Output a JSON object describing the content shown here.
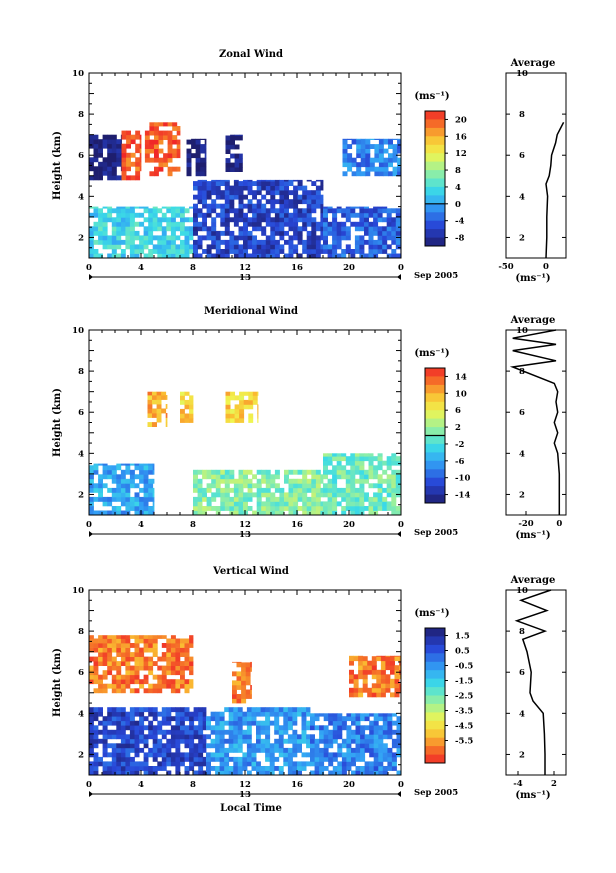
{
  "chart_data": [
    {
      "type": "heatmap",
      "title": "Zonal Wind",
      "ylabel": "Height (km)",
      "xlabel": "",
      "date_label": "Sep 2005",
      "day_label": "13",
      "xlim": [
        0,
        24
      ],
      "ylim": [
        1,
        10
      ],
      "x_ticks": [
        "0",
        "4",
        "8",
        "12",
        "16",
        "20",
        "0"
      ],
      "y_ticks": [
        "2",
        "4",
        "6",
        "8",
        "10"
      ],
      "colorbar": {
        "unit": "(ms⁻¹)",
        "range": [
          -10,
          22
        ],
        "ticks": [
          "-8",
          "-4",
          "0",
          "4",
          "8",
          "12",
          "16",
          "20"
        ],
        "zero_line": 0
      },
      "regions": [
        {
          "x": [
            0,
            2.5
          ],
          "y": [
            4.8,
            7.0
          ],
          "value": -10
        },
        {
          "x": [
            2.5,
            4
          ],
          "y": [
            4.8,
            7.2
          ],
          "value": 20
        },
        {
          "x": [
            4.3,
            7.0
          ],
          "y": [
            5.0,
            7.6
          ],
          "value": 20
        },
        {
          "x": [
            7.5,
            9.0
          ],
          "y": [
            5.0,
            6.8
          ],
          "value": -10
        },
        {
          "x": [
            10.5,
            11.8
          ],
          "y": [
            5.2,
            7.0
          ],
          "value": -10
        },
        {
          "x": [
            19.5,
            24
          ],
          "y": [
            5.0,
            6.8
          ],
          "value": -2
        },
        {
          "x": [
            0,
            8
          ],
          "y": [
            1.0,
            3.5
          ],
          "value": 3
        },
        {
          "x": [
            8,
            18
          ],
          "y": [
            1.0,
            4.8
          ],
          "value": -6
        },
        {
          "x": [
            18,
            24
          ],
          "y": [
            1.0,
            3.5
          ],
          "value": -4
        }
      ],
      "average_profile": {
        "title": "Average",
        "xlabel": "(ms⁻¹)",
        "x_ticks": [
          "-50",
          "0"
        ],
        "xlim": [
          -50,
          25
        ],
        "y_ticks": [
          "2",
          "4",
          "6",
          "8",
          "10"
        ],
        "height": [
          1.0,
          2.0,
          3.0,
          4.0,
          4.6,
          5.0,
          5.5,
          6.0,
          6.6,
          7.0,
          7.3,
          7.6
        ],
        "wind": [
          0,
          1,
          1,
          2,
          0,
          4,
          6,
          7,
          12,
          14,
          18,
          22
        ]
      }
    },
    {
      "type": "heatmap",
      "title": "Meridional Wind",
      "ylabel": "Height (km)",
      "xlabel": "",
      "date_label": "Sep 2005",
      "day_label": "13",
      "xlim": [
        0,
        24
      ],
      "ylim": [
        1,
        10
      ],
      "x_ticks": [
        "0",
        "4",
        "8",
        "12",
        "16",
        "20",
        "0"
      ],
      "y_ticks": [
        "2",
        "4",
        "6",
        "8",
        "10"
      ],
      "colorbar": {
        "unit": "(ms⁻¹)",
        "range": [
          -16,
          16
        ],
        "ticks": [
          "-14",
          "-10",
          "-6",
          "-2",
          "2",
          "6",
          "10",
          "14"
        ],
        "zero_line": 0
      },
      "regions": [
        {
          "x": [
            0,
            5
          ],
          "y": [
            1.0,
            3.5
          ],
          "value": -6
        },
        {
          "x": [
            4.5,
            6
          ],
          "y": [
            5.3,
            7.0
          ],
          "value": 10
        },
        {
          "x": [
            7,
            8
          ],
          "y": [
            5.5,
            7.0
          ],
          "value": 8
        },
        {
          "x": [
            10.5,
            13
          ],
          "y": [
            5.5,
            7.0
          ],
          "value": 8
        },
        {
          "x": [
            8,
            18
          ],
          "y": [
            1.0,
            3.2
          ],
          "value": 1
        },
        {
          "x": [
            18,
            24
          ],
          "y": [
            1.0,
            4.0
          ],
          "value": 0
        }
      ],
      "average_profile": {
        "title": "Average",
        "xlabel": "(ms⁻¹)",
        "x_ticks": [
          "-20",
          "0"
        ],
        "xlim": [
          -32,
          4
        ],
        "y_ticks": [
          "2",
          "4",
          "6",
          "8",
          "10"
        ],
        "height": [
          1.0,
          2.0,
          3.0,
          4.0,
          4.5,
          5.0,
          5.5,
          6.0,
          6.5,
          7.0,
          7.4,
          8.2,
          8.5,
          9.0,
          9.3,
          9.6,
          10.0
        ],
        "wind": [
          0,
          0,
          0,
          -1,
          -3,
          -1,
          -3,
          -1,
          -2,
          -1,
          -3,
          -28,
          -2,
          -28,
          -2,
          -28,
          -2
        ]
      }
    },
    {
      "type": "heatmap",
      "title": "Vertical Wind",
      "ylabel": "Height (km)",
      "xlabel": "Local Time",
      "date_label": "Sep 2005",
      "day_label": "13",
      "xlim": [
        0,
        24
      ],
      "ylim": [
        1,
        10
      ],
      "x_ticks": [
        "0",
        "4",
        "8",
        "12",
        "16",
        "20",
        "0"
      ],
      "y_ticks": [
        "2",
        "4",
        "6",
        "8",
        "10"
      ],
      "colorbar": {
        "unit": "(ms⁻¹)",
        "range": [
          -7,
          2
        ],
        "ticks": [
          "1.5",
          "0.5",
          "-0.5",
          "-1.5",
          "-2.5",
          "-3.5",
          "-4.5",
          "-5.5"
        ]
      },
      "regions": [
        {
          "x": [
            0,
            8
          ],
          "y": [
            5.0,
            7.8
          ],
          "value": -6
        },
        {
          "x": [
            0,
            9
          ],
          "y": [
            1.0,
            4.3
          ],
          "value": 0.8
        },
        {
          "x": [
            9,
            17
          ],
          "y": [
            1.0,
            4.3
          ],
          "value": -0.6
        },
        {
          "x": [
            17,
            24
          ],
          "y": [
            1.0,
            4.0
          ],
          "value": -0.2
        },
        {
          "x": [
            11,
            12.5
          ],
          "y": [
            4.5,
            6.5
          ],
          "value": -6
        },
        {
          "x": [
            20,
            24
          ],
          "y": [
            4.8,
            6.8
          ],
          "value": -6
        }
      ],
      "average_profile": {
        "title": "Average",
        "xlabel": "(ms⁻¹)",
        "x_ticks": [
          "-4",
          "2"
        ],
        "xlim": [
          -6,
          4
        ],
        "y_ticks": [
          "2",
          "4",
          "6",
          "8",
          "10"
        ],
        "height": [
          1.0,
          2.0,
          3.0,
          4.0,
          4.6,
          5.0,
          6.0,
          7.0,
          7.6,
          8.0,
          8.5,
          9.0,
          9.5,
          10.0
        ],
        "wind": [
          0.5,
          0.5,
          0.4,
          0.2,
          -1.5,
          -2.0,
          -1.8,
          -2.5,
          -3.2,
          0.5,
          -4.2,
          0.8,
          -3.5,
          1.5
        ]
      }
    }
  ]
}
